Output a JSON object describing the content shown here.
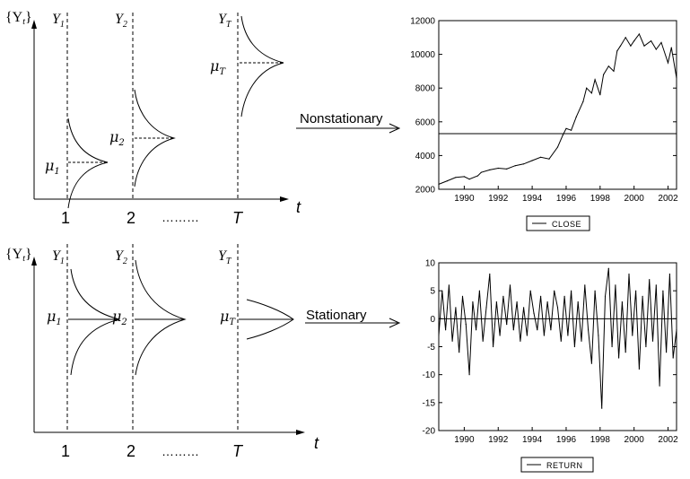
{
  "top_diagram": {
    "y_axis_label": "{Y",
    "y_axis_label_sub": "t",
    "y_axis_label_close": "}",
    "dist_labels": [
      {
        "base": "Y",
        "sub": "1"
      },
      {
        "base": "Y",
        "sub": "2"
      },
      {
        "base": "Y",
        "sub": "T"
      }
    ],
    "mean_labels": [
      {
        "base": "μ",
        "sub": "1"
      },
      {
        "base": "μ",
        "sub": "2"
      },
      {
        "base": "μ",
        "sub": "T"
      }
    ],
    "time_ticks": [
      "1",
      "2",
      "T"
    ],
    "dots": "………",
    "time_label": "t",
    "arrow_label": "Nonstationary"
  },
  "bottom_diagram": {
    "y_axis_label": "{Y",
    "y_axis_label_sub": "t",
    "y_axis_label_close": "}",
    "dist_labels": [
      {
        "base": "Y",
        "sub": "1"
      },
      {
        "base": "Y",
        "sub": "2"
      },
      {
        "base": "Y",
        "sub": "T"
      }
    ],
    "mean_labels": [
      {
        "base": "μ",
        "sub": "1"
      },
      {
        "base": "μ",
        "sub": "2"
      },
      {
        "base": "μ",
        "sub": "T"
      }
    ],
    "time_ticks": [
      "1",
      "2",
      "T"
    ],
    "dots": "………",
    "time_label": "t",
    "arrow_label": "Stationary"
  },
  "chart_data": [
    {
      "type": "line",
      "x_ticks": [
        "1990",
        "1992",
        "1994",
        "1996",
        "1998",
        "2000",
        "2002"
      ],
      "y_ticks": [
        "2000",
        "4000",
        "6000",
        "8000",
        "10000",
        "12000"
      ],
      "xlim": [
        1988.5,
        2002.5
      ],
      "ylim": [
        2000,
        12000
      ],
      "mean_line": 5300,
      "legend": "CLOSE",
      "series": [
        {
          "name": "CLOSE",
          "x": [
            1988.5,
            1989.0,
            1989.5,
            1990.0,
            1990.3,
            1990.8,
            1991.0,
            1991.5,
            1992.0,
            1992.5,
            1993.0,
            1993.5,
            1994.0,
            1994.5,
            1995.0,
            1995.5,
            1995.8,
            1996.0,
            1996.3,
            1996.6,
            1997.0,
            1997.2,
            1997.5,
            1997.7,
            1998.0,
            1998.2,
            1998.5,
            1998.8,
            1999.0,
            1999.2,
            1999.5,
            1999.8,
            2000.0,
            2000.3,
            2000.6,
            2001.0,
            2001.3,
            2001.6,
            2002.0,
            2002.2,
            2002.5
          ],
          "values": [
            2300,
            2500,
            2700,
            2750,
            2600,
            2800,
            3000,
            3150,
            3250,
            3200,
            3400,
            3500,
            3700,
            3900,
            3800,
            4500,
            5200,
            5600,
            5500,
            6300,
            7200,
            8000,
            7700,
            8500,
            7600,
            8800,
            9300,
            9000,
            10200,
            10500,
            11000,
            10500,
            10800,
            11200,
            10500,
            10800,
            10300,
            10700,
            9500,
            10400,
            8600
          ]
        }
      ]
    },
    {
      "type": "line",
      "x_ticks": [
        "1990",
        "1992",
        "1994",
        "1996",
        "1998",
        "2000",
        "2002"
      ],
      "y_ticks": [
        "10",
        "5",
        "0",
        "-5",
        "-10",
        "-15",
        "-20"
      ],
      "xlim": [
        1988.5,
        2002.5
      ],
      "ylim": [
        -20,
        10
      ],
      "mean_line": 0,
      "legend": "RETURN",
      "series": [
        {
          "name": "RETURN",
          "x": [
            1988.5,
            1988.7,
            1988.9,
            1989.1,
            1989.3,
            1989.5,
            1989.7,
            1989.9,
            1990.1,
            1990.3,
            1990.5,
            1990.7,
            1990.9,
            1991.1,
            1991.3,
            1991.5,
            1991.7,
            1991.9,
            1992.1,
            1992.3,
            1992.5,
            1992.7,
            1992.9,
            1993.1,
            1993.3,
            1993.5,
            1993.7,
            1993.9,
            1994.1,
            1994.3,
            1994.5,
            1994.7,
            1994.9,
            1995.1,
            1995.3,
            1995.5,
            1995.7,
            1995.9,
            1996.1,
            1996.3,
            1996.5,
            1996.7,
            1996.9,
            1997.1,
            1997.3,
            1997.5,
            1997.7,
            1997.9,
            1998.1,
            1998.3,
            1998.5,
            1998.7,
            1998.9,
            1999.1,
            1999.3,
            1999.5,
            1999.7,
            1999.9,
            2000.1,
            2000.3,
            2000.5,
            2000.7,
            2000.9,
            2001.1,
            2001.3,
            2001.5,
            2001.7,
            2001.9,
            2002.1,
            2002.3,
            2002.5
          ],
          "values": [
            -3,
            5,
            -2,
            6,
            -4,
            2,
            -6,
            4,
            -1,
            -10,
            3,
            -2,
            5,
            -4,
            2,
            8,
            -5,
            3,
            -3,
            4,
            -1,
            6,
            -2,
            3,
            -4,
            2,
            -3,
            5,
            1,
            -2,
            4,
            -3,
            3,
            -2,
            5,
            2,
            -4,
            4,
            -3,
            5,
            -5,
            3,
            -4,
            6,
            -2,
            -8,
            5,
            -3,
            -16,
            4,
            9,
            -5,
            6,
            -7,
            3,
            -6,
            8,
            -3,
            5,
            -9,
            4,
            -5,
            7,
            -4,
            6,
            -12,
            5,
            -6,
            8,
            -7,
            -2
          ]
        }
      ]
    }
  ]
}
